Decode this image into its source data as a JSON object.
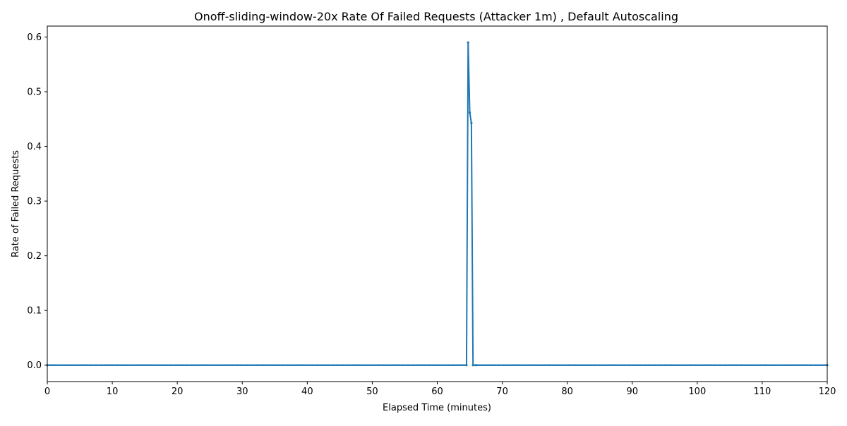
{
  "colors": {
    "series": "#1f77b4",
    "axes": "#000000",
    "background": "#ffffff"
  },
  "chart_data": {
    "type": "line",
    "title": "Onoff-sliding-window-20x Rate Of Failed Requests (Attacker 1m) , Default Autoscaling",
    "xlabel": "Elapsed Time (minutes)",
    "ylabel": "Rate of Failed Requests",
    "xlim": [
      0,
      120
    ],
    "ylim": [
      -0.03,
      0.62
    ],
    "xticks": [
      0,
      10,
      20,
      30,
      40,
      50,
      60,
      70,
      80,
      90,
      100,
      110,
      120
    ],
    "xtick_labels": [
      "0",
      "10",
      "20",
      "30",
      "40",
      "50",
      "60",
      "70",
      "80",
      "90",
      "100",
      "110",
      "120"
    ],
    "yticks": [
      0.0,
      0.1,
      0.2,
      0.3,
      0.4,
      0.5,
      0.6
    ],
    "ytick_labels": [
      "0.0",
      "0.1",
      "0.2",
      "0.3",
      "0.4",
      "0.5",
      "0.6"
    ],
    "grid": false,
    "legend": "none",
    "series": [
      {
        "x": [
          0,
          64.5,
          64.75,
          65.0,
          65.25,
          65.5,
          66.0,
          120
        ],
        "y": [
          0.0,
          0.0,
          0.59,
          0.462,
          0.443,
          0.0,
          0.0,
          0.0
        ],
        "marker": "dot",
        "marker_interval_minutes": 0.25
      }
    ]
  }
}
